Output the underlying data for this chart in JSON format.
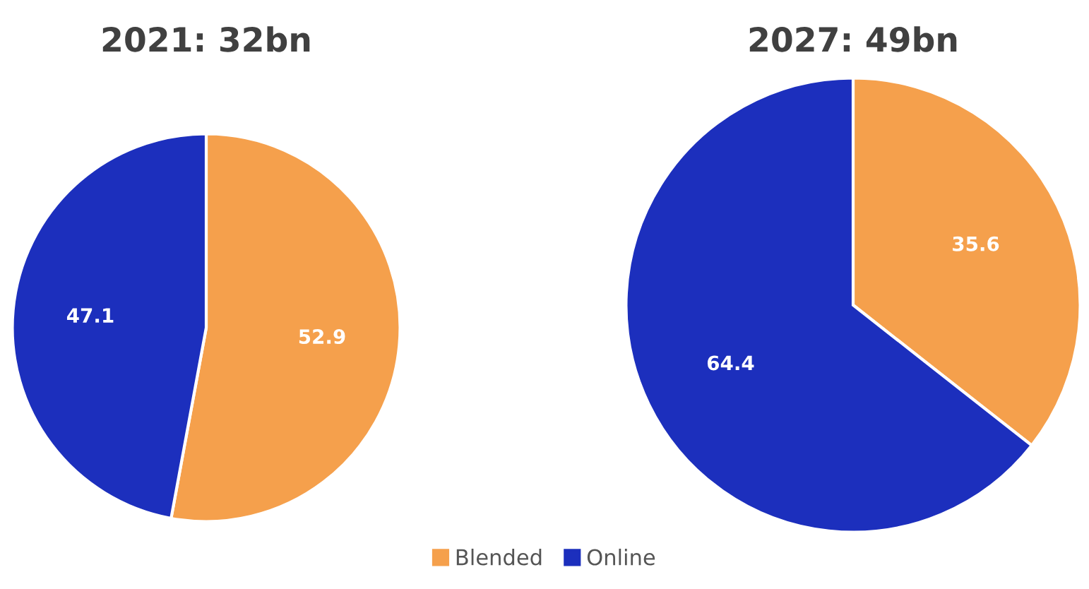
{
  "chart_data": [
    {
      "type": "pie",
      "title": "2021: 32bn",
      "categories": [
        "Blended",
        "Online"
      ],
      "values": [
        52.9,
        47.1
      ],
      "colors": [
        "#f5a04c",
        "#1c2fbd"
      ],
      "data_labels": true,
      "legend": "bottom"
    },
    {
      "type": "pie",
      "title": "2027: 49bn",
      "categories": [
        null,
        null
      ],
      "values": [
        35.6,
        64.4
      ],
      "colors": [
        "#f5a04c",
        "#1c2fbd"
      ],
      "data_labels": true
    }
  ]
}
